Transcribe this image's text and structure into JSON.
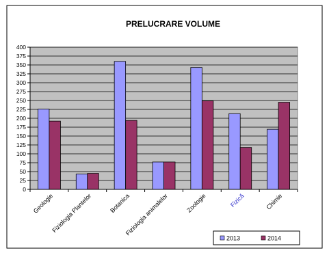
{
  "chart_data": {
    "type": "bar",
    "title": "PRELUCRARE VOLUME",
    "categories": [
      "Geologie",
      "Fiziologia Plantelor",
      "Botanica",
      "Fiziologia animalelor",
      "Zoologie",
      "Fizică",
      "Chimie"
    ],
    "series": [
      {
        "name": "2013",
        "values": [
          226,
          43,
          360,
          77,
          343,
          213,
          169
        ],
        "color": "#9999ff"
      },
      {
        "name": "2014",
        "values": [
          192,
          45,
          194,
          77,
          249,
          118,
          245
        ],
        "color": "#993366"
      }
    ],
    "ylim": [
      0,
      400
    ],
    "yticks": [
      0,
      25,
      50,
      75,
      100,
      125,
      150,
      175,
      200,
      225,
      250,
      275,
      300,
      325,
      350,
      375,
      400
    ],
    "grid": true,
    "legend_position": "bottom-right",
    "plot_background": "#c0c0c0",
    "category_label_colors": [
      "#000000",
      "#000000",
      "#000000",
      "#000000",
      "#000000",
      "#3333cc",
      "#000000"
    ]
  }
}
